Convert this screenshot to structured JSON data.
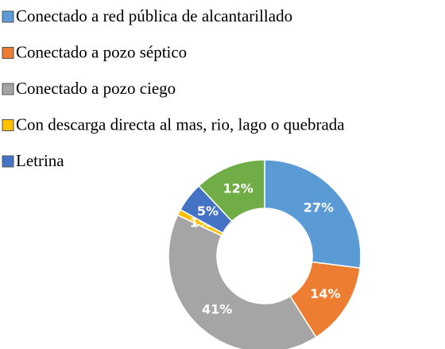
{
  "chart_data": {
    "type": "doughnut",
    "categories": [
      "Conectado a red pública de alcantarillado",
      "Conectado a pozo séptico",
      "Conectado a pozo ciego",
      "Con descarga directa al mas, rio, lago o quebrada",
      "Letrina",
      null
    ],
    "values": [
      27,
      14,
      41,
      1,
      5,
      12
    ],
    "value_labels": [
      "27%",
      "14%",
      "41%",
      "1%",
      "5%",
      "12%"
    ],
    "colors": [
      "#5b9bd5",
      "#ed7d31",
      "#a5a5a5",
      "#ffc000",
      "#4472c4",
      "#70ad47"
    ]
  }
}
